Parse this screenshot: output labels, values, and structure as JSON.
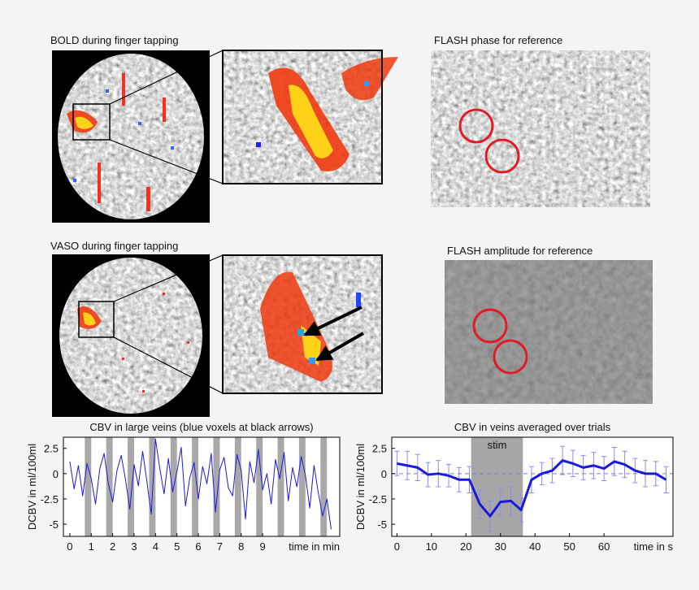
{
  "panels": {
    "bold_title": "BOLD during finger tapping",
    "vaso_title": "VASO during finger tapping",
    "phase_title": "FLASH phase for reference",
    "amplitude_title": "FLASH amplitude for reference"
  },
  "chart_data": [
    {
      "type": "line",
      "title": "CBV in large veins (blue voxels at black arrows)",
      "ylabel": "DCBV in ml/100ml",
      "xlabel": "time in min",
      "color": "#1a1adb",
      "stim_color": "#a8a8a8",
      "x": [
        0,
        0.2,
        0.4,
        0.6,
        0.8,
        1,
        1.2,
        1.4,
        1.6,
        1.8,
        2,
        2.2,
        2.4,
        2.6,
        2.8,
        3,
        3.2,
        3.4,
        3.6,
        3.8,
        4,
        4.2,
        4.4,
        4.6,
        4.8,
        5,
        5.2,
        5.4,
        5.6,
        5.8,
        6,
        6.2,
        6.4,
        6.6,
        6.8,
        7,
        7.2,
        7.4,
        7.6,
        7.8,
        8,
        8.2,
        8.4,
        8.6,
        8.8,
        9,
        9.2,
        9.4,
        9.6,
        9.8,
        10,
        10.2,
        10.4,
        10.6,
        10.8,
        11,
        11.2,
        11.4,
        11.6,
        11.8,
        12,
        12.2
      ],
      "values": [
        1.2,
        -1.5,
        0.8,
        -2.2,
        1.0,
        -0.5,
        -3.0,
        0.5,
        2.0,
        -1.0,
        -2.8,
        0.3,
        1.8,
        -0.6,
        -3.5,
        0.9,
        -1.2,
        2.2,
        -0.8,
        -4.0,
        3.4,
        0.5,
        -2.0,
        1.5,
        -1.8,
        0.2,
        2.6,
        -3.2,
        -0.4,
        1.1,
        -2.5,
        0.7,
        -1.0,
        2.0,
        -3.8,
        0.4,
        1.6,
        -1.4,
        -2.2,
        1.9,
        0.3,
        -4.5,
        1.2,
        -0.9,
        2.4,
        -1.6,
        0.0,
        -3.0,
        1.4,
        -0.5,
        2.1,
        -2.7,
        0.6,
        -1.3,
        1.7,
        -0.2,
        -3.4,
        0.8,
        -1.9,
        -4.2,
        -2.5,
        -5.5
      ],
      "stim_blocks": [
        [
          0.7,
          1.0
        ],
        [
          1.7,
          2.0
        ],
        [
          2.7,
          3.0
        ],
        [
          3.7,
          4.0
        ],
        [
          4.7,
          5.0
        ],
        [
          5.7,
          6.0
        ],
        [
          6.7,
          7.0
        ],
        [
          7.7,
          8.0
        ],
        [
          8.7,
          9.0
        ],
        [
          9.7,
          10.0
        ],
        [
          10.7,
          11.0
        ],
        [
          11.7,
          12.0
        ]
      ],
      "xlim": [
        -0.3,
        12.6
      ],
      "ylim": [
        -6.2,
        3.6
      ],
      "xticks": [
        0,
        1,
        2,
        3,
        4,
        5,
        6,
        7,
        8,
        9
      ],
      "yticks": [
        -5,
        -2.5,
        0,
        2.5
      ]
    },
    {
      "type": "line",
      "title": "CBV in veins averaged over trials",
      "ylabel": "DCBV in ml/100ml",
      "xlabel": "time in s",
      "color": "#1a1adb",
      "error_color": "#8c8cf0",
      "stim_color": "#a6a6a6",
      "stim_label": "stim",
      "reference_line": 0,
      "x": [
        0,
        3,
        6,
        9,
        12,
        15,
        18,
        21,
        24,
        27,
        30,
        33,
        36,
        39,
        42,
        45,
        48,
        51,
        54,
        57,
        60,
        63,
        66,
        69,
        72,
        75,
        78
      ],
      "values": [
        1.0,
        0.8,
        0.6,
        -0.1,
        0.0,
        -0.2,
        -0.6,
        -0.6,
        -3.0,
        -4.2,
        -2.8,
        -2.7,
        -3.6,
        -0.6,
        0.0,
        0.3,
        1.3,
        1.0,
        0.6,
        0.8,
        0.5,
        1.2,
        0.9,
        0.3,
        0.0,
        0.0,
        -0.6
      ],
      "errors": [
        1.2,
        1.4,
        1.3,
        1.2,
        1.3,
        1.1,
        1.2,
        1.3,
        1.4,
        1.5,
        1.3,
        1.4,
        1.2,
        1.3,
        1.1,
        1.2,
        1.4,
        1.3,
        1.2,
        1.3,
        1.2,
        1.4,
        1.3,
        1.2,
        1.3,
        1.2,
        1.3
      ],
      "stim_blocks": [
        [
          21.5,
          36.5
        ]
      ],
      "xlim": [
        -1.5,
        80
      ],
      "ylim": [
        -6.2,
        3.6
      ],
      "xticks": [
        0,
        10,
        20,
        30,
        40,
        50,
        60
      ],
      "yticks": [
        -5,
        -2.5,
        0,
        2.5
      ]
    }
  ]
}
